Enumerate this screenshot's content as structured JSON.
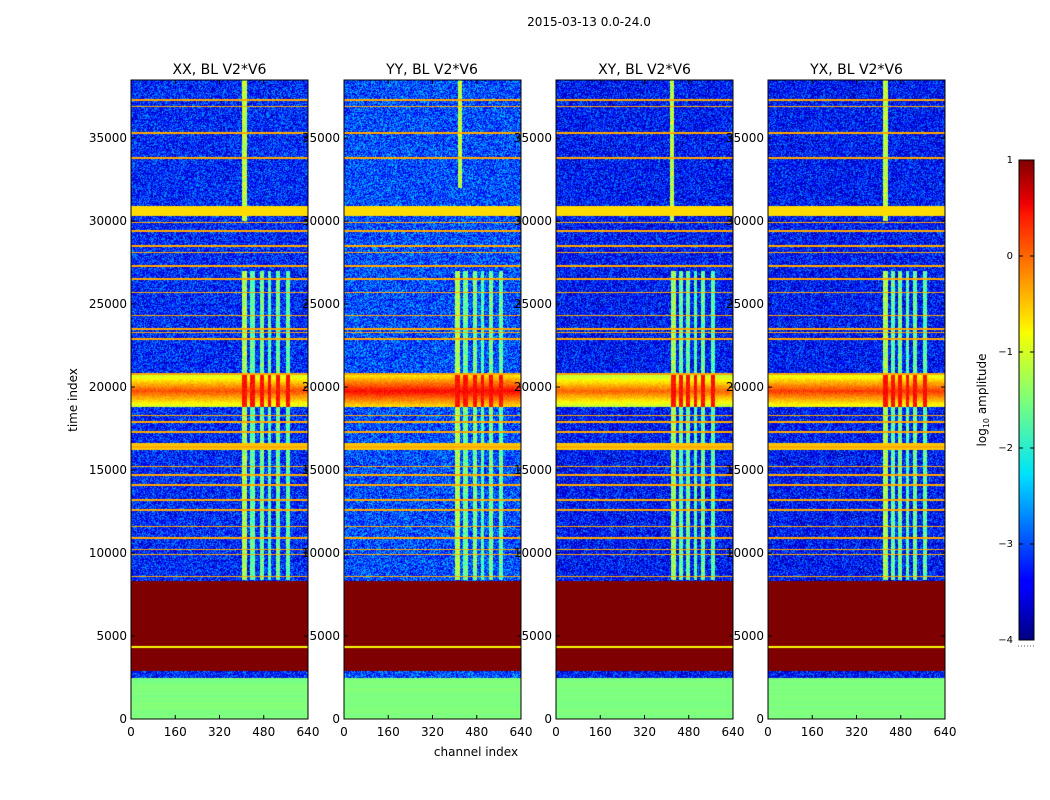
{
  "figure_title": "2015-03-13 0.0-24.0",
  "xlabel": "channel index",
  "ylabel": "time index",
  "colorbar_label": "log10 amplitude",
  "colorbar_label_base": "log",
  "colorbar_label_sub": "10",
  "colorbar_label_rest": " amplitude",
  "colorbar_tick_labels": [
    "1",
    "0",
    "−1",
    "−2",
    "−3",
    "−4"
  ],
  "colors": {
    "background": "#ffffff",
    "colormap": "jet",
    "low_band": "#99ee55",
    "masked": "#800000"
  },
  "chart_data": {
    "type": "heatmap",
    "title": "2015-03-13 0.0-24.0",
    "xlabel": "channel index",
    "ylabel": "time index",
    "xlim": [
      0,
      640
    ],
    "ylim": [
      0,
      38500
    ],
    "x_ticks": [
      0,
      160,
      320,
      480,
      640
    ],
    "y_ticks": [
      0,
      5000,
      10000,
      15000,
      20000,
      25000,
      30000,
      35000
    ],
    "colorbar": {
      "label": "log10 amplitude",
      "range": [
        -4,
        1
      ],
      "ticks": [
        1,
        0,
        -1,
        -2,
        -3,
        -4
      ]
    },
    "panels": [
      {
        "title": "XX, BL V2*V6",
        "baseline": -3.2,
        "rfi_columns": [
          [
            400,
            420,
            1.2
          ],
          [
            430,
            450,
            0.5
          ],
          [
            465,
            480,
            0.7
          ],
          [
            495,
            505,
            0.4
          ],
          [
            525,
            540,
            0.6
          ],
          [
            560,
            575,
            0.5
          ]
        ],
        "bright_band": [
          18800,
          20700,
          -0.1
        ],
        "time_spike": {
          "channel": 410,
          "t_from": 30000,
          "t_to": 38500
        }
      },
      {
        "title": "YY, BL V2*V6",
        "baseline": -3.0,
        "rfi_columns": [
          [
            400,
            420,
            1.3
          ],
          [
            430,
            450,
            0.6
          ],
          [
            465,
            480,
            0.8
          ],
          [
            495,
            505,
            0.4
          ],
          [
            525,
            540,
            0.7
          ],
          [
            560,
            575,
            0.5
          ]
        ],
        "bright_band": [
          18800,
          20700,
          0.25
        ],
        "time_spike": {
          "channel": 420,
          "t_from": 32000,
          "t_to": 38500
        }
      },
      {
        "title": "XY, BL V2*V6",
        "baseline": -3.3,
        "rfi_columns": [
          [
            415,
            435,
            1.1
          ],
          [
            445,
            460,
            0.5
          ],
          [
            470,
            485,
            0.6
          ],
          [
            500,
            510,
            0.4
          ],
          [
            525,
            540,
            0.6
          ],
          [
            560,
            575,
            0.4
          ]
        ],
        "bright_band": [
          18800,
          20700,
          -0.2
        ],
        "time_spike": {
          "channel": 420,
          "t_from": 30000,
          "t_to": 38500
        }
      },
      {
        "title": "YX, BL V2*V6",
        "baseline": -3.3,
        "rfi_columns": [
          [
            415,
            435,
            1.2
          ],
          [
            445,
            460,
            0.5
          ],
          [
            470,
            485,
            0.7
          ],
          [
            500,
            510,
            0.4
          ],
          [
            525,
            540,
            0.6
          ],
          [
            560,
            575,
            0.5
          ]
        ],
        "bright_band": [
          18800,
          20700,
          0.0
        ],
        "time_spike": {
          "channel": 425,
          "t_from": 30000,
          "t_to": 38500
        }
      }
    ],
    "masked_block": {
      "t_from": 2900,
      "t_to": 8300,
      "value": 1.0
    },
    "low_band": {
      "t_from": 0,
      "t_to": 2500,
      "value": -1.5
    },
    "flagged_rows": [
      4350,
      8600,
      9900,
      10200,
      10900,
      11600,
      12600,
      13200,
      14100,
      14700,
      15200,
      16400,
      17300,
      17900,
      18300,
      20800,
      22900,
      23300,
      23500,
      24300,
      25700,
      26500,
      27300,
      28100,
      28500,
      29400,
      29900,
      33800,
      35300,
      36900,
      37300
    ]
  }
}
